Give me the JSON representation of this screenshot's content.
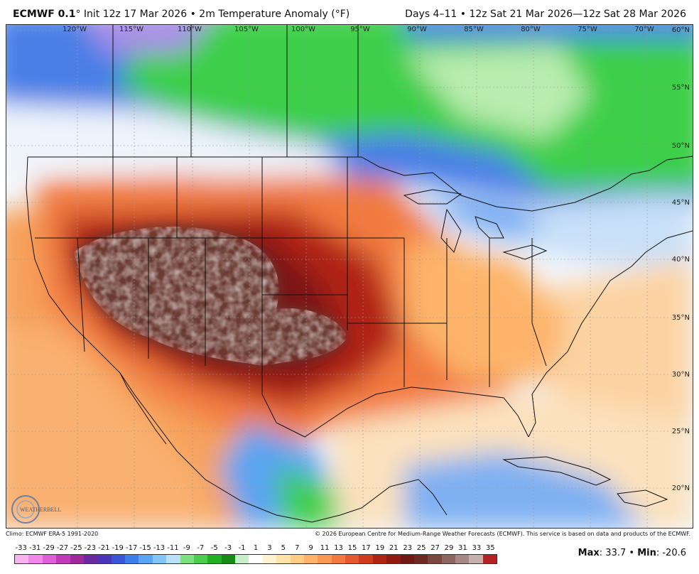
{
  "header": {
    "model": "ECMWF 0.1",
    "degree": "°",
    "init": "Init 12z 17 Mar 2026",
    "separator": "•",
    "product": "2m Temperature Anomaly (°F)",
    "range": "Days 4–11  •  12z Sat 21 Mar 2026—12z Sat 28 Mar 2026"
  },
  "map": {
    "lon_labels": [
      "120°W",
      "115°W",
      "110°W",
      "105°W",
      "100°W",
      "95°W",
      "90°W",
      "85°W",
      "80°W",
      "75°W",
      "70°W"
    ],
    "lat_labels": [
      "60°N",
      "55°N",
      "50°N",
      "45°N",
      "40°N",
      "35°N",
      "30°N",
      "25°N",
      "20°N"
    ],
    "logo_text": "WEATHERBELL"
  },
  "footer": {
    "climo": "Climo: ECMWF ERA-5 1991-2020",
    "copyright": "© 2026 European Centre for Medium-Range Weather Forecasts (ECMWF). This service is based on data and products of the ECMWF."
  },
  "colorbar": {
    "ticks": [
      "-33",
      "-31",
      "-29",
      "-27",
      "-25",
      "-23",
      "-21",
      "-19",
      "-17",
      "-15",
      "-13",
      "-11",
      "-9",
      "-7",
      "-5",
      "-3",
      "-1",
      "1",
      "3",
      "5",
      "7",
      "9",
      "11",
      "13",
      "15",
      "17",
      "19",
      "21",
      "23",
      "25",
      "27",
      "29",
      "31",
      "33",
      "35"
    ],
    "colors": [
      "#f7b3f0",
      "#f08ae6",
      "#e05fd6",
      "#c23ab7",
      "#9c2a9a",
      "#6c2aa0",
      "#4a36b8",
      "#3a55d6",
      "#3f7ee8",
      "#5aa4f2",
      "#86c6f7",
      "#b9e2fa",
      "#7fe07f",
      "#4ccd4c",
      "#22b022",
      "#158a15",
      "#c8f0c8",
      "#ffffff",
      "#fff3cf",
      "#ffe2a6",
      "#ffcd84",
      "#fdb46a",
      "#f99954",
      "#f27a40",
      "#e45a2e",
      "#cf3c1f",
      "#b02414",
      "#8f1a10",
      "#6e1a12",
      "#6b2a22",
      "#7a463e",
      "#8e6660",
      "#a68984",
      "#c4b0ad",
      "#b22222"
    ]
  },
  "stats": {
    "max_label": "Max",
    "max_value": "33.7",
    "min_label": "Min",
    "min_value": "-20.6"
  }
}
